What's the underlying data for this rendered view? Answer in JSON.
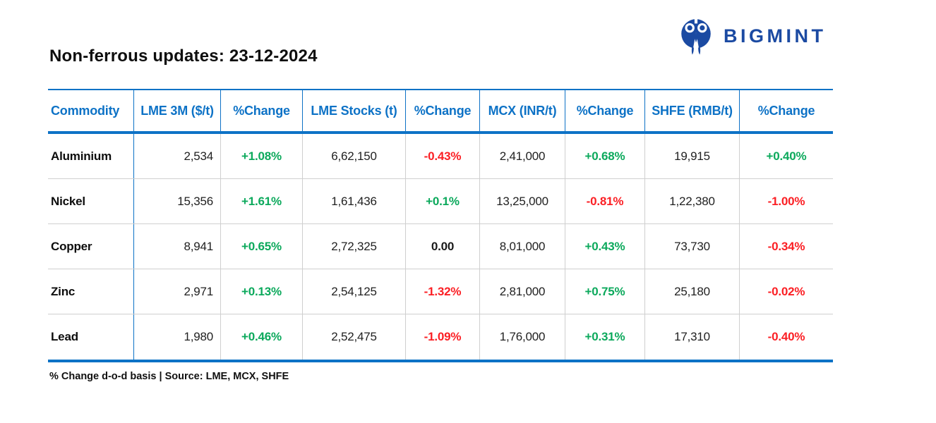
{
  "header": {
    "title": "Non-ferrous updates: 23-12-2024"
  },
  "brand": {
    "wordmark": "BIGMINT",
    "icon": "bigmint-m-logo-icon"
  },
  "colors": {
    "header_blue": "#0d72c6",
    "brand_navy": "#1b4aa2",
    "positive_green": "#0ca95c",
    "negative_red": "#fb1f24",
    "grid_gray": "#cfcfcf"
  },
  "chart_data": {
    "type": "table",
    "title": "Non-ferrous updates: 23-12-2024",
    "columns": [
      "Commodity",
      "LME 3M ($/t)",
      "%Change",
      "LME Stocks (t)",
      "%Change",
      "MCX (INR/t)",
      "%Change",
      "SHFE (RMB/t)",
      "%Change"
    ],
    "rows": [
      {
        "commodity": "Aluminium",
        "lme_3m": "2,534",
        "lme_3m_change": "+1.08%",
        "lme_stocks": "6,62,150",
        "lme_stocks_change": "-0.43%",
        "mcx": "2,41,000",
        "mcx_change": "+0.68%",
        "shfe": "19,915",
        "shfe_change": "+0.40%"
      },
      {
        "commodity": "Nickel",
        "lme_3m": "15,356",
        "lme_3m_change": "+1.61%",
        "lme_stocks": "1,61,436",
        "lme_stocks_change": "+0.1%",
        "mcx": "13,25,000",
        "mcx_change": "-0.81%",
        "shfe": "1,22,380",
        "shfe_change": "-1.00%"
      },
      {
        "commodity": "Copper",
        "lme_3m": "8,941",
        "lme_3m_change": "+0.65%",
        "lme_stocks": "2,72,325",
        "lme_stocks_change": "0.00",
        "mcx": "8,01,000",
        "mcx_change": "+0.43%",
        "shfe": "73,730",
        "shfe_change": "-0.34%"
      },
      {
        "commodity": "Zinc",
        "lme_3m": "2,971",
        "lme_3m_change": "+0.13%",
        "lme_stocks": "2,54,125",
        "lme_stocks_change": "-1.32%",
        "mcx": "2,81,000",
        "mcx_change": "+0.75%",
        "shfe": "25,180",
        "shfe_change": "-0.02%"
      },
      {
        "commodity": "Lead",
        "lme_3m": "1,980",
        "lme_3m_change": "+0.46%",
        "lme_stocks": "2,52,475",
        "lme_stocks_change": "-1.09%",
        "mcx": "1,76,000",
        "mcx_change": "+0.31%",
        "shfe": "17,310",
        "shfe_change": "-0.40%"
      }
    ],
    "footnote": "% Change d-o-d basis | Source: LME, MCX, SHFE",
    "layout": {
      "grid": "on",
      "legend": "none",
      "value_colors": "green positive, red negative, black zero"
    }
  }
}
